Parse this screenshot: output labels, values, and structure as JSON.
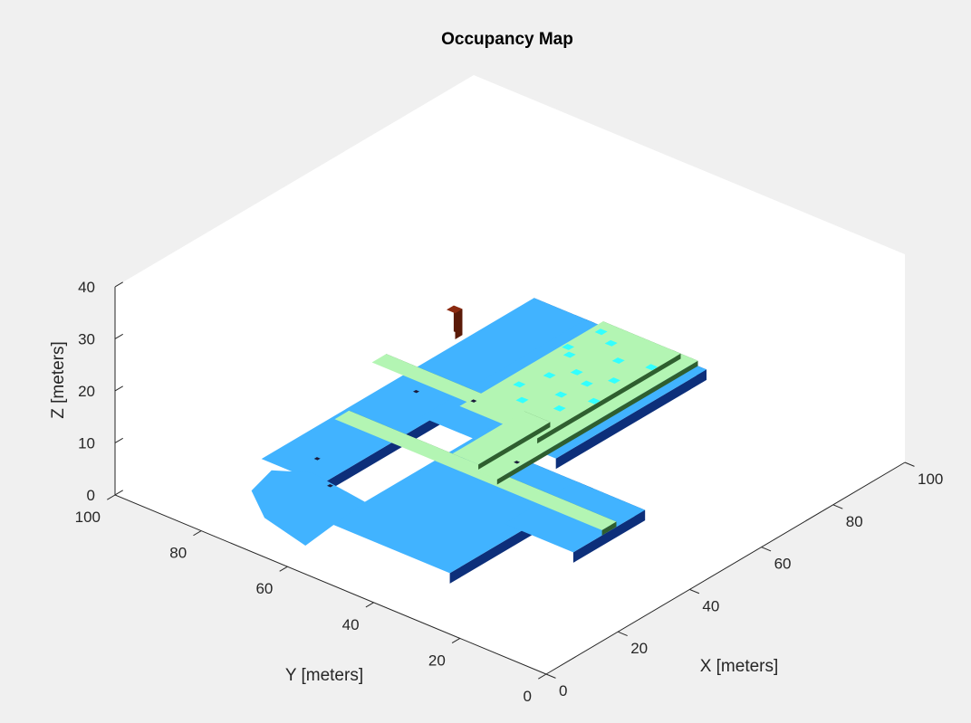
{
  "chart_data": {
    "type": "3d-occupancy-map",
    "title": "Occupancy Map",
    "xlabel": "X [meters]",
    "ylabel": "Y [meters]",
    "zlabel": "Z [meters]",
    "xlim": [
      0,
      100
    ],
    "ylim": [
      0,
      100
    ],
    "zlim": [
      0,
      40
    ],
    "xticks": [
      "0",
      "20",
      "40",
      "60",
      "80",
      "100"
    ],
    "yticks": [
      "0",
      "20",
      "40",
      "60",
      "80",
      "100"
    ],
    "zticks": [
      "0",
      "10",
      "20",
      "30",
      "40"
    ],
    "colors": {
      "floor": "#41b3ff",
      "floor_edge": "#0d2f7a",
      "walkway": "#b3f5b3",
      "walkway_side": "#2f5e2f",
      "marker": "#33ffff",
      "obstacle": "#8b2a10",
      "background": "#f0f0f0",
      "axes": "#ffffff"
    }
  }
}
